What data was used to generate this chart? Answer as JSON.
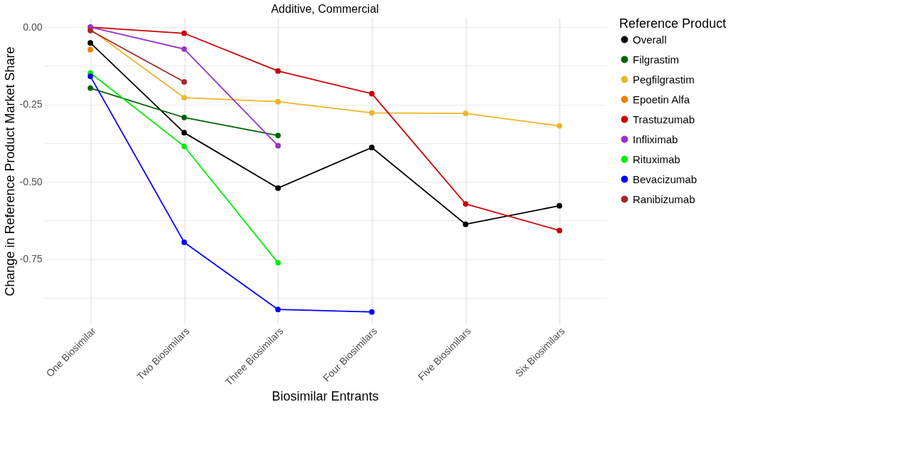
{
  "chart_data": {
    "type": "line",
    "title": "Additive, Commercial",
    "xlabel": "Biosimilar Entrants",
    "ylabel": "Change in Reference Product Market Share",
    "legend_title": "Reference Product",
    "categories": [
      "One Biosimilar",
      "Two Biosimilars",
      "Three Biosimilars",
      "Four Biosimilars",
      "Five Biosimilars",
      "Six Biosimilars"
    ],
    "series": [
      {
        "name": "Overall",
        "color": "#000000",
        "values": [
          -0.051,
          -0.341,
          -0.52,
          -0.389,
          -0.637,
          -0.577
        ]
      },
      {
        "name": "Filgrastim",
        "color": "#006400",
        "values": [
          -0.197,
          -0.292,
          -0.35,
          null,
          null,
          null
        ]
      },
      {
        "name": "Pegfilgrastim",
        "color": "#f0b429",
        "values": [
          -0.007,
          -0.228,
          -0.241,
          -0.277,
          -0.279,
          -0.319
        ]
      },
      {
        "name": "Epoetin Alfa",
        "color": "#f07f00",
        "values": [
          -0.073,
          null,
          null,
          null,
          null,
          null
        ]
      },
      {
        "name": "Trastuzumab",
        "color": "#cc0000",
        "values": [
          0.0,
          -0.02,
          -0.142,
          -0.215,
          -0.571,
          -0.657
        ]
      },
      {
        "name": "Infliximab",
        "color": "#9932cc",
        "values": [
          0.0,
          -0.071,
          -0.383,
          null,
          null,
          null
        ]
      },
      {
        "name": "Rituximab",
        "color": "#00ee00",
        "values": [
          -0.148,
          -0.385,
          -0.761,
          null,
          null,
          null
        ]
      },
      {
        "name": "Bevacizumab",
        "color": "#0000ff",
        "values": [
          -0.159,
          -0.695,
          -0.912,
          -0.92,
          null,
          null
        ]
      },
      {
        "name": "Ranibizumab",
        "color": "#a52a2a",
        "values": [
          -0.011,
          -0.177,
          null,
          null,
          null,
          null
        ]
      }
    ],
    "ylim": [
      -0.96,
      0.03
    ],
    "yticks": [
      {
        "value": 0,
        "label": "0.00"
      },
      {
        "value": -0.125,
        "label": null
      },
      {
        "value": -0.25,
        "label": "-0.25"
      },
      {
        "value": -0.375,
        "label": null
      },
      {
        "value": -0.5,
        "label": "-0.50"
      },
      {
        "value": -0.625,
        "label": null
      },
      {
        "value": -0.75,
        "label": "-0.75"
      },
      {
        "value": -0.875,
        "label": null
      }
    ],
    "grid": true,
    "legend": "right",
    "marker": "circle",
    "line_style": "solid"
  }
}
